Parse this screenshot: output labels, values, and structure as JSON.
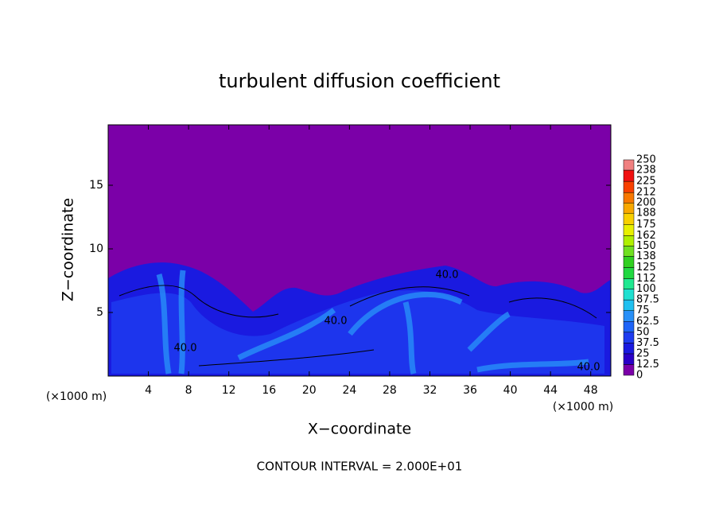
{
  "chart_data": {
    "type": "contour",
    "title": "turbulent diffusion coefficient",
    "xlabel": "X−coordinate",
    "ylabel": "Z−coordinate",
    "x_unit": "(×1000 m)",
    "x_unit_right": "(×1000 m)",
    "footer": "CONTOUR INTERVAL = 2.000E+01",
    "xlim": [
      0,
      50
    ],
    "ylim": [
      0,
      19.75
    ],
    "xticks": [
      4,
      8,
      12,
      16,
      20,
      24,
      28,
      32,
      36,
      40,
      44,
      48
    ],
    "yticks": [
      5,
      10,
      15
    ],
    "colorbar_levels": [
      0,
      12.5,
      25,
      37.5,
      50,
      62.5,
      75,
      87.5,
      100,
      112,
      125,
      138,
      150,
      162,
      175,
      188,
      200,
      212,
      225,
      238,
      250
    ],
    "colorbar_colors": [
      "#7b00a8",
      "#2a00c8",
      "#1a1ae0",
      "#1e3cf0",
      "#1e64f8",
      "#2890f8",
      "#20c0f0",
      "#20e0d0",
      "#20e890",
      "#20d840",
      "#30d020",
      "#70e020",
      "#b0f000",
      "#e8f000",
      "#f8d000",
      "#f8a800",
      "#f87800",
      "#f84000",
      "#f01010",
      "#f08080"
    ],
    "contour_labels": [
      {
        "value": 40,
        "label": "40.0"
      },
      {
        "value": 40,
        "label": "40.0"
      },
      {
        "value": 40,
        "label": "40.0"
      },
      {
        "value": 40,
        "label": "40.0"
      }
    ]
  }
}
